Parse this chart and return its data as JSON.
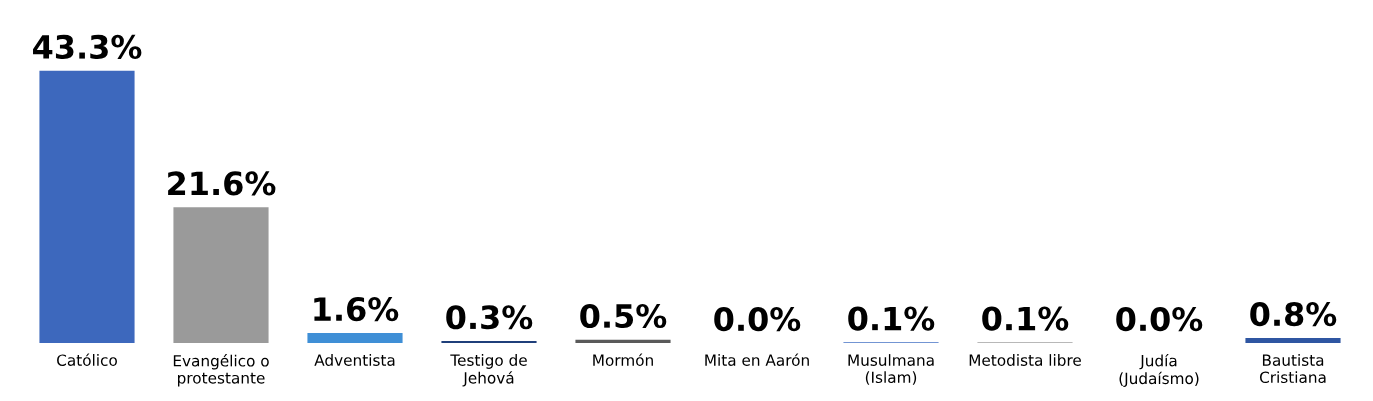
{
  "chart_data": {
    "type": "bar",
    "categories": [
      "Católico",
      "Evangélico o\nprotestante",
      "Adventista",
      "Testigo de\nJehová",
      "Mormón",
      "Mita en Aarón",
      "Musulmana\n(Islam)",
      "Metodista libre",
      "Judía\n(Judaísmo)",
      "Bautista\nCristiana"
    ],
    "values": [
      43.3,
      21.6,
      1.6,
      0.3,
      0.5,
      0.0,
      0.1,
      0.1,
      0.0,
      0.8
    ],
    "value_labels": [
      "43.3%",
      "21.6%",
      "1.6%",
      "0.3%",
      "0.5%",
      "0.0%",
      "0.1%",
      "0.1%",
      "0.0%",
      "0.8%"
    ],
    "colors": [
      "#3d68bd",
      "#9a9a9a",
      "#3f8fd6",
      "#1f3f7a",
      "#5a5a5a",
      "#4472c4",
      "#4472c4",
      "#a0a0a0",
      "#4472c4",
      "#2f56a2"
    ],
    "grid": false,
    "legend": false
  }
}
